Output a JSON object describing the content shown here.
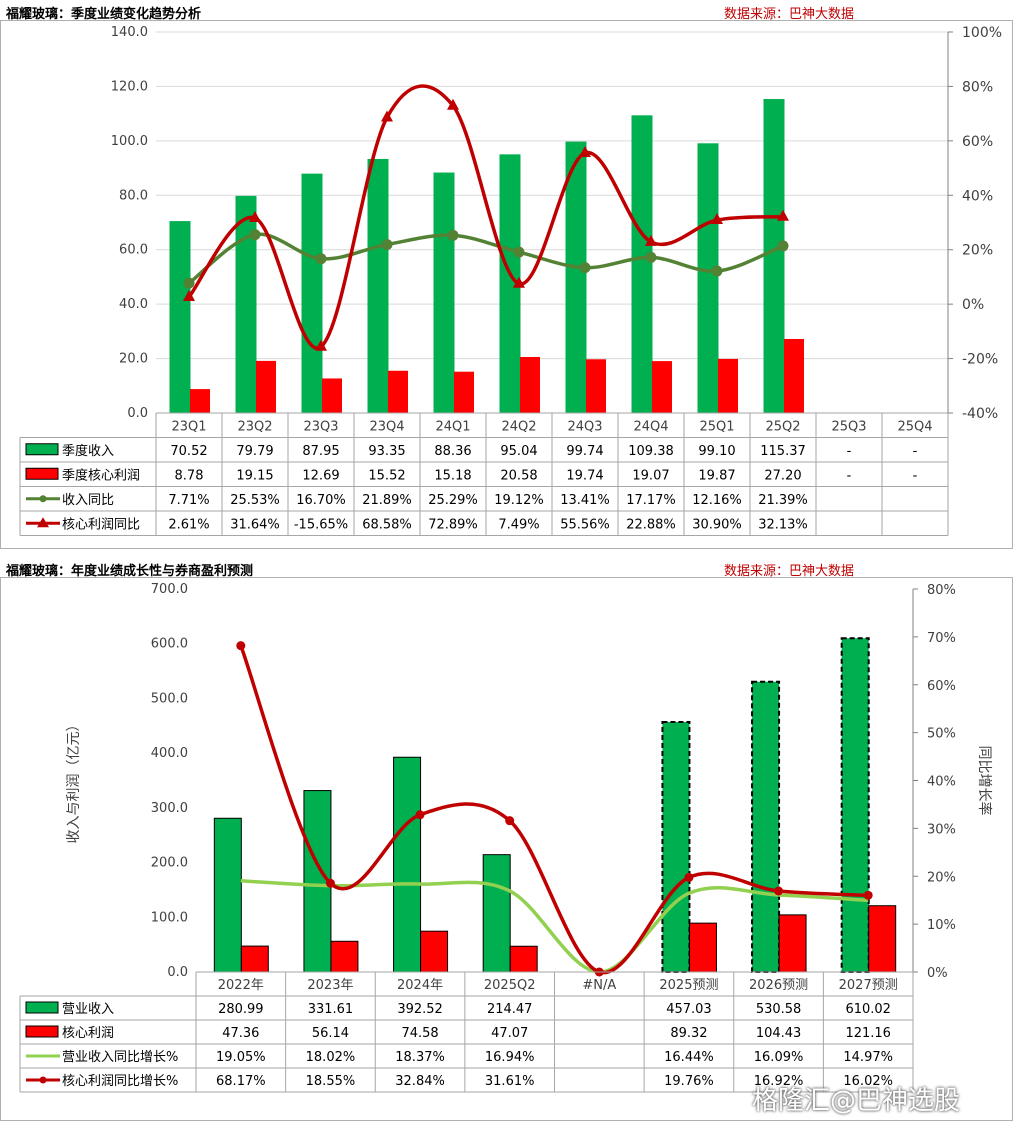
{
  "chart_data": [
    {
      "type": "bar",
      "title": "福耀玻璃：季度业绩变化趋势分析",
      "source": "数据来源：巴神大数据",
      "categories": [
        "23Q1",
        "23Q2",
        "23Q3",
        "23Q4",
        "24Q1",
        "24Q2",
        "24Q3",
        "24Q4",
        "25Q1",
        "25Q2",
        "25Q3",
        "25Q4"
      ],
      "y_left_ticks": [
        "0.0",
        "20.0",
        "40.0",
        "60.0",
        "80.0",
        "100.0",
        "120.0",
        "140.0"
      ],
      "y_right_ticks": [
        "-40%",
        "-20%",
        "0%",
        "20%",
        "40%",
        "60%",
        "80%",
        "100%"
      ],
      "ylim": [
        0,
        140
      ],
      "y2lim": [
        -40,
        100
      ],
      "grid": true,
      "legend": "table-below",
      "series": [
        {
          "name": "季度收入",
          "kind": "bar",
          "color": "#00b050",
          "values": [
            70.52,
            79.79,
            87.95,
            93.35,
            88.36,
            95.04,
            99.74,
            109.38,
            99.1,
            115.37,
            null,
            null
          ],
          "labels": [
            "70.52",
            "79.79",
            "87.95",
            "93.35",
            "88.36",
            "95.04",
            "99.74",
            "109.38",
            "99.10",
            "115.37",
            "-",
            "-"
          ]
        },
        {
          "name": "季度核心利润",
          "kind": "bar",
          "color": "#ff0000",
          "values": [
            8.78,
            19.15,
            12.69,
            15.52,
            15.18,
            20.58,
            19.74,
            19.07,
            19.87,
            27.2,
            null,
            null
          ],
          "labels": [
            "8.78",
            "19.15",
            "12.69",
            "15.52",
            "15.18",
            "20.58",
            "19.74",
            "19.07",
            "19.87",
            "27.20",
            "-",
            "-"
          ]
        },
        {
          "name": "收入同比",
          "kind": "line",
          "axis": "right",
          "color": "#548235",
          "marker": "circle",
          "values": [
            7.71,
            25.53,
            16.7,
            21.89,
            25.29,
            19.12,
            13.41,
            17.17,
            12.16,
            21.39,
            null,
            null
          ],
          "labels": [
            "7.71%",
            "25.53%",
            "16.70%",
            "21.89%",
            "25.29%",
            "19.12%",
            "13.41%",
            "17.17%",
            "12.16%",
            "21.39%",
            "",
            ""
          ]
        },
        {
          "name": "核心利润同比",
          "kind": "line",
          "axis": "right",
          "color": "#c00000",
          "marker": "triangle",
          "values": [
            2.61,
            31.64,
            -15.65,
            68.58,
            72.89,
            7.49,
            55.56,
            22.88,
            30.9,
            32.13,
            null,
            null
          ],
          "labels": [
            "2.61%",
            "31.64%",
            "-15.65%",
            "68.58%",
            "72.89%",
            "7.49%",
            "55.56%",
            "22.88%",
            "30.90%",
            "32.13%",
            "",
            ""
          ]
        }
      ]
    },
    {
      "type": "bar",
      "title": "福耀玻璃：年度业绩成长性与券商盈利预测",
      "source": "数据来源：巴神大数据",
      "categories": [
        "2022年",
        "2023年",
        "2024年",
        "2025Q2",
        "#N/A",
        "2025预测",
        "2026预测",
        "2027预测"
      ],
      "ylabel": "收入与利润（亿元）",
      "y2label": "同比增长率",
      "y_left_ticks": [
        "0.0",
        "100.0",
        "200.0",
        "300.0",
        "400.0",
        "500.0",
        "600.0",
        "700.0"
      ],
      "y_right_ticks": [
        "0%",
        "10%",
        "20%",
        "30%",
        "40%",
        "50%",
        "60%",
        "70%",
        "80%"
      ],
      "ylim": [
        0,
        700
      ],
      "y2lim": [
        0,
        80
      ],
      "grid": false,
      "legend": "table-below",
      "forecast_categories": [
        "2025预测",
        "2026预测",
        "2027预测"
      ],
      "series": [
        {
          "name": "营业收入",
          "kind": "bar",
          "color": "#00b050",
          "values": [
            280.99,
            331.61,
            392.52,
            214.47,
            null,
            457.03,
            530.58,
            610.02
          ],
          "labels": [
            "280.99",
            "331.61",
            "392.52",
            "214.47",
            "",
            "457.03",
            "530.58",
            "610.02"
          ]
        },
        {
          "name": "核心利润",
          "kind": "bar",
          "color": "#ff0000",
          "values": [
            47.36,
            56.14,
            74.58,
            47.07,
            null,
            89.32,
            104.43,
            121.16
          ],
          "labels": [
            "47.36",
            "56.14",
            "74.58",
            "47.07",
            "",
            "89.32",
            "104.43",
            "121.16"
          ]
        },
        {
          "name": "营业收入同比增长%",
          "kind": "line",
          "axis": "right",
          "color": "#92d050",
          "marker": "none",
          "values": [
            19.05,
            18.02,
            18.37,
            16.94,
            0,
            16.44,
            16.09,
            14.97
          ],
          "labels": [
            "19.05%",
            "18.02%",
            "18.37%",
            "16.94%",
            "",
            "16.44%",
            "16.09%",
            "14.97%"
          ]
        },
        {
          "name": "核心利润同比增长%",
          "kind": "line",
          "axis": "right",
          "color": "#c00000",
          "marker": "circle",
          "values": [
            68.17,
            18.55,
            32.84,
            31.61,
            0,
            19.76,
            16.92,
            16.02
          ],
          "labels": [
            "68.17%",
            "18.55%",
            "32.84%",
            "31.61%",
            "",
            "19.76%",
            "16.92%",
            "16.02%"
          ]
        }
      ]
    }
  ],
  "watermark": "格隆汇@巴神选股"
}
